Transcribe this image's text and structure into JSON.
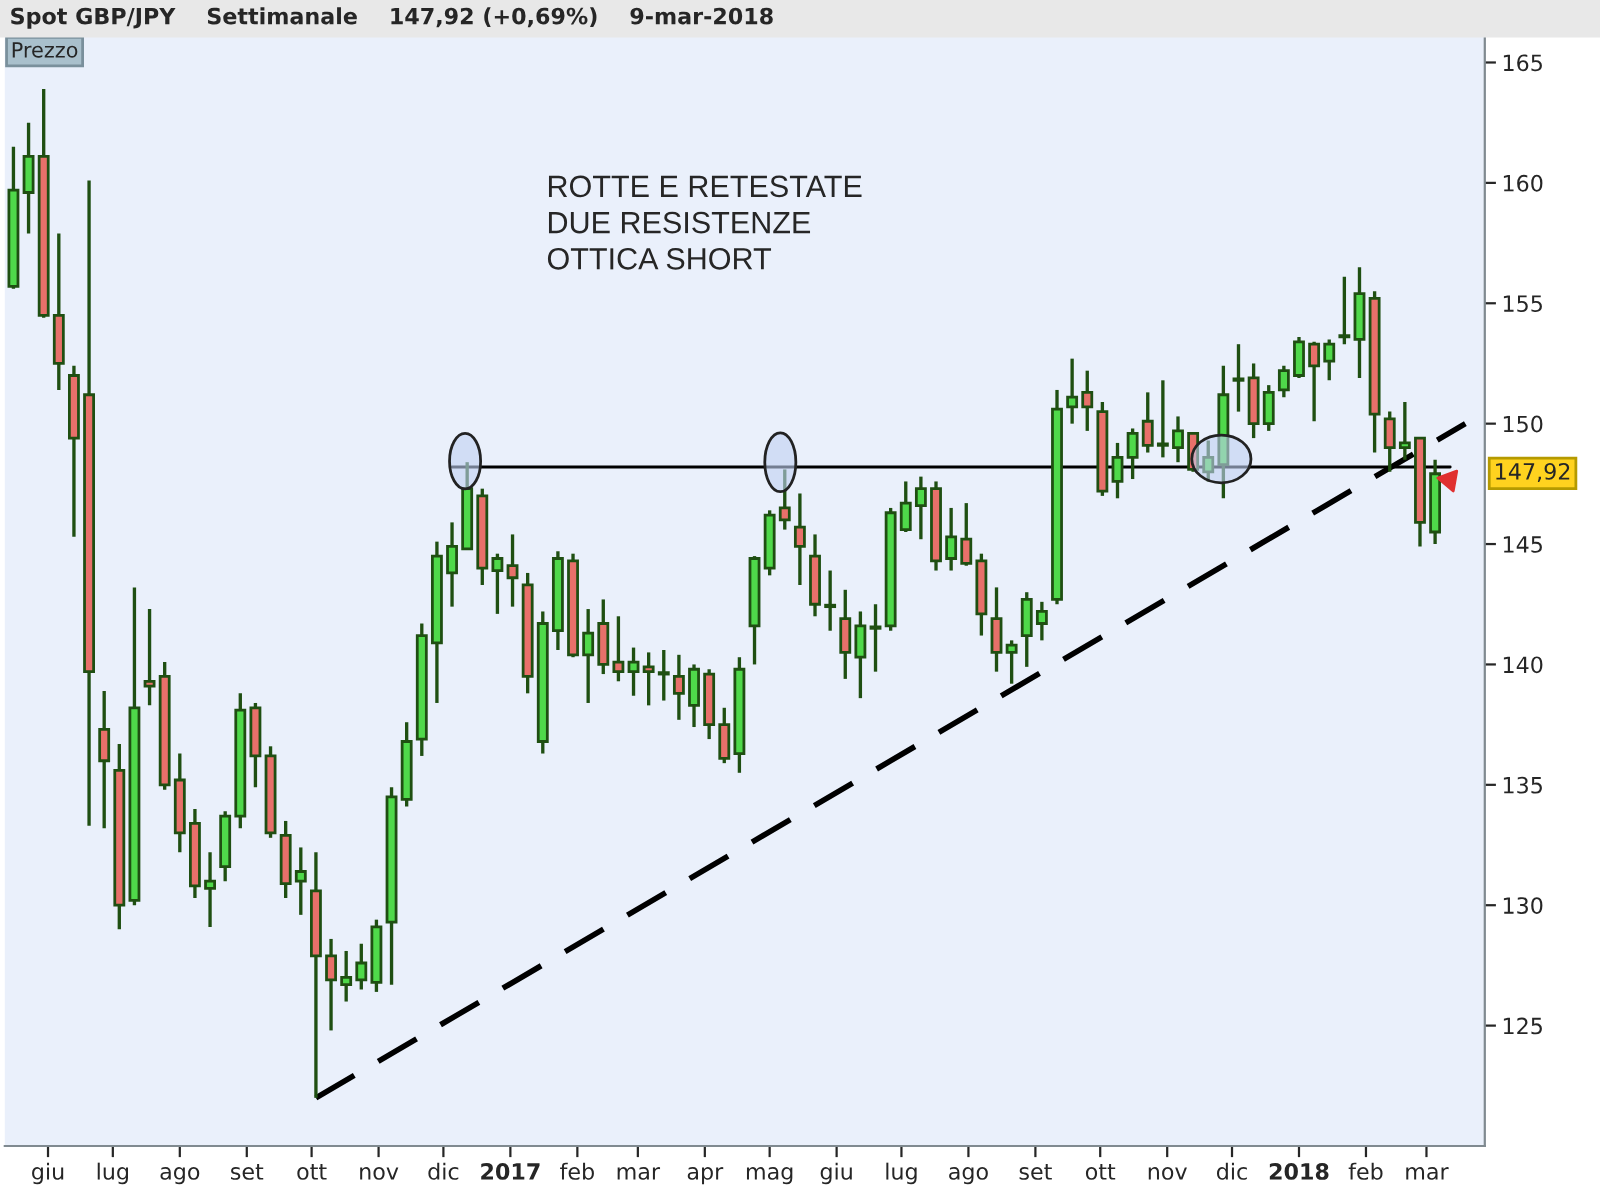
{
  "chart_data": {
    "type": "candlestick",
    "title": "Spot GBP/JPY    Settimanale    147,92 (+0,69%)    9-mar-2018",
    "annotations": [
      "ROTTE E RETESTATE\nDUE RESISTENZE\nOTTICA SHORT",
      "Prezzo",
      "147,92"
    ],
    "x": [
      "2016-05-16",
      "2016-05-23",
      "2016-05-30",
      "2016-06-06",
      "2016-06-13",
      "2016-06-20",
      "2016-06-27",
      "2016-07-04",
      "2016-07-11",
      "2016-07-18",
      "2016-07-25",
      "2016-08-01",
      "2016-08-08",
      "2016-08-15",
      "2016-08-22",
      "2016-08-29",
      "2016-09-05",
      "2016-09-12",
      "2016-09-19",
      "2016-09-26",
      "2016-10-03",
      "2016-10-10",
      "2016-10-17",
      "2016-10-24",
      "2016-10-31",
      "2016-11-07",
      "2016-11-14",
      "2016-11-21",
      "2016-11-28",
      "2016-12-05",
      "2016-12-12",
      "2016-12-19",
      "2016-12-26",
      "2017-01-02",
      "2017-01-09",
      "2017-01-16",
      "2017-01-23",
      "2017-01-30",
      "2017-02-06",
      "2017-02-13",
      "2017-02-20",
      "2017-02-27",
      "2017-03-06",
      "2017-03-13",
      "2017-03-20",
      "2017-03-27",
      "2017-04-03",
      "2017-04-10",
      "2017-04-17",
      "2017-04-24",
      "2017-05-01",
      "2017-05-08",
      "2017-05-15",
      "2017-05-22",
      "2017-05-29",
      "2017-06-05",
      "2017-06-12",
      "2017-06-19",
      "2017-06-26",
      "2017-07-03",
      "2017-07-10",
      "2017-07-17",
      "2017-07-24",
      "2017-07-31",
      "2017-08-07",
      "2017-08-14",
      "2017-08-21",
      "2017-08-28",
      "2017-09-04",
      "2017-09-11",
      "2017-09-18",
      "2017-09-25",
      "2017-10-02",
      "2017-10-09",
      "2017-10-16",
      "2017-10-23",
      "2017-10-30",
      "2017-11-06",
      "2017-11-13",
      "2017-11-20",
      "2017-11-27",
      "2017-12-04",
      "2017-12-11",
      "2017-12-18",
      "2017-12-25",
      "2018-01-01",
      "2018-01-08",
      "2018-01-15",
      "2018-01-22",
      "2018-01-29",
      "2018-02-05",
      "2018-02-12",
      "2018-02-19",
      "2018-02-26",
      "2018-03-05"
    ],
    "ohlc": [
      [
        155.7,
        161.5,
        155.6,
        159.7
      ],
      [
        159.6,
        162.5,
        157.9,
        161.1
      ],
      [
        161.1,
        163.9,
        154.4,
        154.5
      ],
      [
        154.5,
        157.9,
        151.4,
        152.5
      ],
      [
        152.0,
        152.4,
        145.3,
        149.4
      ],
      [
        151.2,
        160.1,
        133.3,
        139.7
      ],
      [
        137.3,
        138.9,
        133.2,
        136.0
      ],
      [
        135.6,
        136.7,
        129.0,
        130.0
      ],
      [
        130.2,
        143.2,
        130.0,
        138.2
      ],
      [
        139.3,
        142.3,
        138.3,
        139.1
      ],
      [
        139.5,
        140.1,
        134.8,
        135.0
      ],
      [
        135.2,
        136.3,
        132.2,
        133.0
      ],
      [
        133.4,
        134.0,
        130.3,
        130.8
      ],
      [
        130.7,
        132.2,
        129.1,
        131.0
      ],
      [
        131.6,
        133.9,
        131.0,
        133.7
      ],
      [
        133.7,
        138.8,
        133.2,
        138.1
      ],
      [
        138.2,
        138.4,
        134.9,
        136.2
      ],
      [
        136.2,
        136.6,
        132.8,
        133.0
      ],
      [
        132.9,
        133.5,
        130.3,
        130.9
      ],
      [
        131.0,
        132.4,
        129.6,
        131.4
      ],
      [
        130.6,
        132.2,
        122.0,
        127.9
      ],
      [
        127.9,
        128.6,
        124.8,
        126.9
      ],
      [
        126.7,
        128.1,
        126.0,
        127.0
      ],
      [
        126.9,
        128.4,
        126.5,
        127.6
      ],
      [
        126.8,
        129.4,
        126.4,
        129.1
      ],
      [
        129.3,
        134.9,
        126.7,
        134.5
      ],
      [
        134.4,
        137.6,
        134.1,
        136.8
      ],
      [
        136.9,
        141.7,
        136.2,
        141.2
      ],
      [
        140.9,
        145.1,
        138.4,
        144.5
      ],
      [
        143.8,
        145.9,
        142.4,
        144.9
      ],
      [
        144.8,
        148.4,
        144.8,
        147.3
      ],
      [
        147.0,
        147.3,
        143.3,
        144.0
      ],
      [
        143.9,
        144.6,
        142.1,
        144.4
      ],
      [
        144.1,
        145.4,
        142.4,
        143.6
      ],
      [
        143.3,
        143.8,
        138.8,
        139.5
      ],
      [
        136.8,
        142.2,
        136.3,
        141.7
      ],
      [
        141.4,
        144.7,
        140.6,
        144.4
      ],
      [
        144.3,
        144.6,
        140.3,
        140.4
      ],
      [
        140.4,
        142.3,
        138.4,
        141.3
      ],
      [
        141.7,
        142.7,
        139.6,
        140.0
      ],
      [
        140.1,
        142.0,
        139.3,
        139.7
      ],
      [
        139.7,
        140.7,
        138.7,
        140.1
      ],
      [
        139.9,
        140.5,
        138.3,
        139.7
      ],
      [
        139.6,
        140.6,
        138.5,
        139.6
      ],
      [
        139.5,
        140.4,
        137.7,
        138.8
      ],
      [
        138.3,
        140.0,
        137.4,
        139.8
      ],
      [
        139.6,
        139.8,
        136.9,
        137.5
      ],
      [
        137.5,
        138.2,
        135.9,
        136.1
      ],
      [
        136.3,
        140.3,
        135.5,
        139.8
      ],
      [
        141.6,
        144.5,
        140.0,
        144.4
      ],
      [
        144.0,
        146.4,
        143.7,
        146.2
      ],
      [
        146.5,
        148.1,
        145.6,
        146.0
      ],
      [
        145.7,
        147.1,
        143.3,
        144.9
      ],
      [
        144.5,
        145.4,
        142.0,
        142.5
      ],
      [
        142.4,
        143.9,
        141.4,
        142.4
      ],
      [
        141.9,
        143.1,
        139.4,
        140.5
      ],
      [
        140.3,
        142.2,
        138.6,
        141.6
      ],
      [
        141.5,
        142.5,
        139.7,
        141.5
      ],
      [
        141.6,
        146.5,
        141.4,
        146.3
      ],
      [
        145.6,
        147.6,
        145.5,
        146.7
      ],
      [
        146.6,
        147.8,
        145.2,
        147.3
      ],
      [
        147.3,
        147.6,
        143.9,
        144.3
      ],
      [
        144.4,
        146.5,
        143.9,
        145.3
      ],
      [
        145.2,
        146.7,
        144.1,
        144.2
      ],
      [
        144.3,
        144.6,
        141.2,
        142.1
      ],
      [
        141.9,
        143.2,
        139.7,
        140.5
      ],
      [
        140.5,
        141.0,
        139.2,
        140.8
      ],
      [
        141.2,
        143.0,
        139.9,
        142.7
      ],
      [
        141.7,
        142.6,
        141.0,
        142.2
      ],
      [
        142.7,
        151.4,
        142.5,
        150.6
      ],
      [
        150.7,
        152.7,
        150.0,
        151.1
      ],
      [
        151.3,
        152.2,
        149.7,
        150.7
      ],
      [
        150.5,
        150.9,
        147.0,
        147.2
      ],
      [
        147.6,
        149.2,
        146.9,
        148.6
      ],
      [
        148.6,
        149.8,
        147.7,
        149.6
      ],
      [
        150.1,
        151.3,
        148.8,
        149.1
      ],
      [
        149.1,
        151.8,
        148.6,
        149.1
      ],
      [
        149.0,
        150.3,
        148.4,
        149.7
      ],
      [
        149.6,
        149.6,
        148.0,
        148.1
      ],
      [
        148.0,
        149.3,
        147.6,
        148.6
      ],
      [
        148.3,
        152.4,
        146.9,
        151.2
      ],
      [
        151.8,
        153.3,
        150.5,
        151.8
      ],
      [
        151.9,
        152.5,
        149.4,
        150.0
      ],
      [
        150.0,
        151.6,
        149.7,
        151.3
      ],
      [
        151.4,
        152.4,
        151.1,
        152.2
      ],
      [
        152.0,
        153.6,
        151.9,
        153.4
      ],
      [
        153.3,
        153.4,
        150.1,
        152.4
      ],
      [
        152.6,
        153.5,
        151.8,
        153.3
      ],
      [
        153.6,
        156.1,
        153.3,
        153.6
      ],
      [
        153.5,
        156.5,
        151.9,
        155.4
      ],
      [
        155.2,
        155.5,
        148.8,
        150.4
      ],
      [
        150.2,
        150.5,
        148.0,
        149.0
      ],
      [
        149.0,
        150.9,
        148.5,
        149.2
      ],
      [
        149.4,
        149.4,
        144.9,
        145.9
      ],
      [
        145.5,
        148.5,
        145.0,
        147.92
      ]
    ],
    "series": [
      {
        "type": "line",
        "x": [
          "2016-12-05",
          "2018-03-12"
        ],
        "values": [
          148.2,
          148.2
        ],
        "color": "#000000",
        "line_style": "solid"
      },
      {
        "type": "line",
        "x": [
          "2016-10-03",
          "2018-03-19"
        ],
        "values": [
          122.0,
          150.0
        ],
        "color": "#000000",
        "line_style": "dashed"
      }
    ],
    "xlim": [
      "2016-05-12",
      "2018-03-28"
    ],
    "xticks": [
      {
        "value": "2016-06-01",
        "label": "giu"
      },
      {
        "value": "2016-07-01",
        "label": "lug"
      },
      {
        "value": "2016-08-01",
        "label": "ago"
      },
      {
        "value": "2016-09-01",
        "label": "set"
      },
      {
        "value": "2016-10-01",
        "label": "ott"
      },
      {
        "value": "2016-11-01",
        "label": "nov"
      },
      {
        "value": "2016-12-01",
        "label": "dic"
      },
      {
        "value": "2017-01-01",
        "label": "2017"
      },
      {
        "value": "2017-02-01",
        "label": "feb"
      },
      {
        "value": "2017-03-01",
        "label": "mar"
      },
      {
        "value": "2017-04-01",
        "label": "apr"
      },
      {
        "value": "2017-05-01",
        "label": "mag"
      },
      {
        "value": "2017-06-01",
        "label": "giu"
      },
      {
        "value": "2017-07-01",
        "label": "lug"
      },
      {
        "value": "2017-08-01",
        "label": "ago"
      },
      {
        "value": "2017-09-01",
        "label": "set"
      },
      {
        "value": "2017-10-01",
        "label": "ott"
      },
      {
        "value": "2017-11-01",
        "label": "nov"
      },
      {
        "value": "2017-12-01",
        "label": "dic"
      },
      {
        "value": "2018-01-01",
        "label": "2018"
      },
      {
        "value": "2018-02-01",
        "label": "feb"
      },
      {
        "value": "2018-03-01",
        "label": "mar"
      }
    ],
    "ylim": [
      120,
      166.1
    ],
    "yticks": [
      125,
      130,
      135,
      140,
      145,
      150,
      155,
      160,
      165
    ],
    "grid": false,
    "legend": false
  }
}
